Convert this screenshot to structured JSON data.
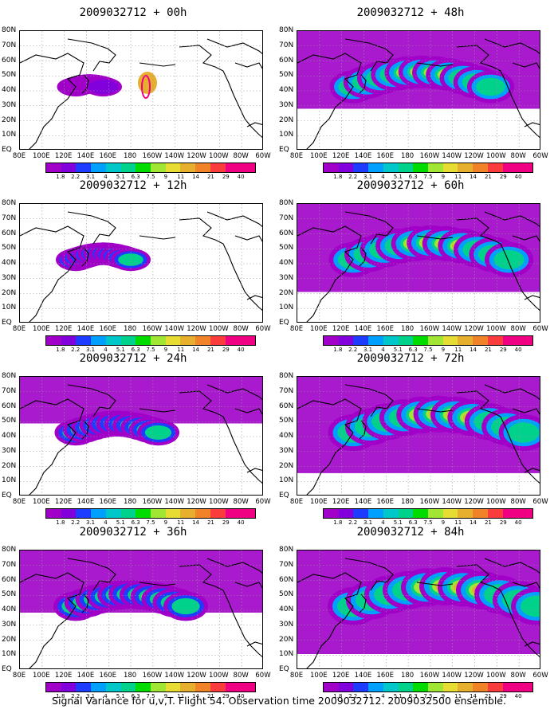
{
  "colorbar": {
    "labels": [
      "1.8",
      "2.2",
      "3.1",
      "4",
      "5.1",
      "6.3",
      "7.5",
      "9",
      "11",
      "14",
      "21",
      "29",
      "40"
    ],
    "colors": [
      "#a000c8",
      "#8200dc",
      "#1e3cff",
      "#00a0ff",
      "#00c8c8",
      "#00d28c",
      "#00dc00",
      "#a0e632",
      "#e6dc32",
      "#e6af2d",
      "#f08228",
      "#fa3c3c",
      "#f00082"
    ]
  },
  "axes": {
    "lat_labels": [
      "80N",
      "70N",
      "60N",
      "50N",
      "40N",
      "30N",
      "20N",
      "10N",
      "EQ"
    ],
    "lon_labels": [
      "80E",
      "100E",
      "120E",
      "140E",
      "160E",
      "180",
      "160W",
      "140W",
      "120W",
      "100W",
      "80W",
      "60W"
    ]
  },
  "panels": [
    {
      "title": "2009032712 + 00h",
      "spread": 0.15
    },
    {
      "title": "2009032712 + 12h",
      "spread": 0.3
    },
    {
      "title": "2009032712 + 24h",
      "spread": 0.45
    },
    {
      "title": "2009032712 + 36h",
      "spread": 0.6
    },
    {
      "title": "2009032712 + 48h",
      "spread": 0.75
    },
    {
      "title": "2009032712 + 60h",
      "spread": 0.85
    },
    {
      "title": "2009032712 + 72h",
      "spread": 0.93
    },
    {
      "title": "2009032712 + 84h",
      "spread": 1.0
    }
  ],
  "caption": "Signal Variance for u,v,T. Flight 54. Observation time 2009032712. 2009032500 ensemble."
}
